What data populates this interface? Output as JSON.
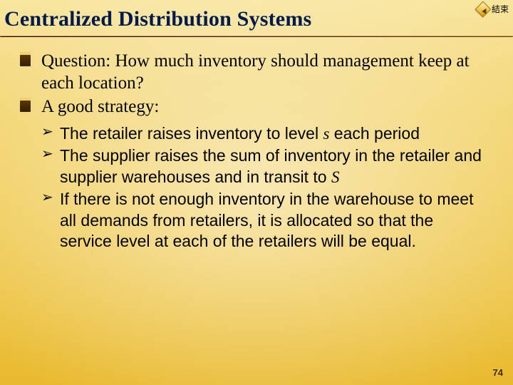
{
  "header": {
    "title": "Centralized Distribution Systems",
    "end_label": "結束"
  },
  "bullets": {
    "level1": [
      "Question:  How much inventory should management keep at each location?",
      "A good strategy:"
    ],
    "level2": [
      {
        "pre": "The retailer raises inventory to level ",
        "em": "s",
        "post": " each period"
      },
      {
        "pre": "The supplier raises the sum of inventory in the retailer and supplier warehouses and in transit to ",
        "em": "S",
        "post": ""
      },
      {
        "pre": "If there is not enough inventory in the warehouse to meet all demands from retailers, it is allocated so that the service level at each of the retailers will be equal.",
        "em": "",
        "post": ""
      }
    ]
  },
  "page_number": "74",
  "colors": {
    "title_color": "#001a4d",
    "underline_color": "#330000",
    "bg_top": "#f8e6a0",
    "bg_bottom": "#e9ba30"
  }
}
